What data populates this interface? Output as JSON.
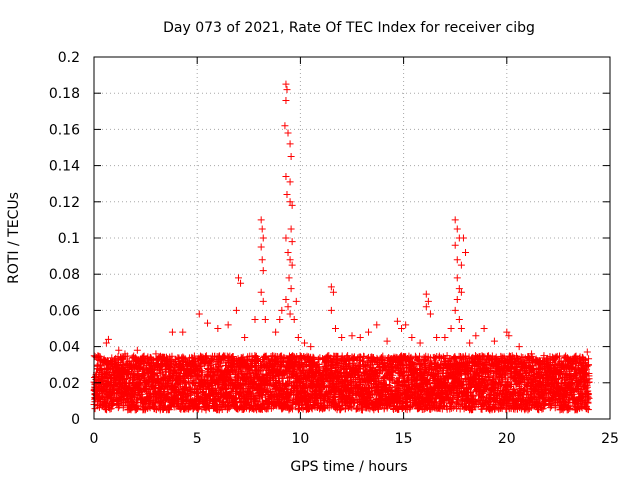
{
  "chart_data": {
    "type": "scatter",
    "title": "Day 073 of 2021, Rate Of TEC Index for receiver cibg",
    "xlabel": "GPS time / hours",
    "ylabel": "ROTI / TECUs",
    "xlim": [
      0,
      25
    ],
    "ylim": [
      0,
      0.2
    ],
    "xticks": [
      0,
      5,
      10,
      15,
      20,
      25
    ],
    "xtick_labels": [
      "0",
      "5",
      "10",
      "15",
      "20",
      "25"
    ],
    "yticks": [
      0,
      0.02,
      0.04,
      0.06,
      0.08,
      0.1,
      0.12,
      0.14,
      0.16,
      0.18,
      0.2
    ],
    "ytick_labels": [
      "0",
      "0.02",
      "0.04",
      "0.06",
      "0.08",
      "0.1",
      "0.12",
      "0.14",
      "0.16",
      "0.18",
      "0.2"
    ],
    "grid": true,
    "marker": "plus",
    "color": "#ff0000",
    "series": [
      {
        "data_range_x": [
          0,
          24
        ],
        "baseline_y_range": [
          0.005,
          0.035
        ],
        "points": [
          [
            0.3,
            0.03
          ],
          [
            0.6,
            0.042
          ],
          [
            0.7,
            0.044
          ],
          [
            1.2,
            0.038
          ],
          [
            1.5,
            0.036
          ],
          [
            2.1,
            0.038
          ],
          [
            3.0,
            0.036
          ],
          [
            3.8,
            0.048
          ],
          [
            4.3,
            0.048
          ],
          [
            5.1,
            0.058
          ],
          [
            5.5,
            0.053
          ],
          [
            6.0,
            0.05
          ],
          [
            6.5,
            0.052
          ],
          [
            6.9,
            0.06
          ],
          [
            7.0,
            0.078
          ],
          [
            7.1,
            0.075
          ],
          [
            7.3,
            0.045
          ],
          [
            7.8,
            0.055
          ],
          [
            8.1,
            0.11
          ],
          [
            8.15,
            0.105
          ],
          [
            8.2,
            0.1
          ],
          [
            8.1,
            0.095
          ],
          [
            8.15,
            0.088
          ],
          [
            8.2,
            0.082
          ],
          [
            8.1,
            0.07
          ],
          [
            8.2,
            0.065
          ],
          [
            8.3,
            0.055
          ],
          [
            8.8,
            0.048
          ],
          [
            9.0,
            0.055
          ],
          [
            9.1,
            0.06
          ],
          [
            9.3,
            0.185
          ],
          [
            9.35,
            0.182
          ],
          [
            9.3,
            0.176
          ],
          [
            9.25,
            0.162
          ],
          [
            9.4,
            0.158
          ],
          [
            9.5,
            0.152
          ],
          [
            9.55,
            0.145
          ],
          [
            9.3,
            0.134
          ],
          [
            9.5,
            0.131
          ],
          [
            9.35,
            0.124
          ],
          [
            9.5,
            0.12
          ],
          [
            9.6,
            0.118
          ],
          [
            9.3,
            0.1
          ],
          [
            9.55,
            0.105
          ],
          [
            9.6,
            0.098
          ],
          [
            9.4,
            0.092
          ],
          [
            9.5,
            0.088
          ],
          [
            9.6,
            0.085
          ],
          [
            9.45,
            0.078
          ],
          [
            9.55,
            0.072
          ],
          [
            9.3,
            0.066
          ],
          [
            9.4,
            0.062
          ],
          [
            9.5,
            0.058
          ],
          [
            9.7,
            0.055
          ],
          [
            9.8,
            0.065
          ],
          [
            9.9,
            0.045
          ],
          [
            10.2,
            0.042
          ],
          [
            10.5,
            0.04
          ],
          [
            11.5,
            0.073
          ],
          [
            11.6,
            0.07
          ],
          [
            11.5,
            0.06
          ],
          [
            11.7,
            0.05
          ],
          [
            12.0,
            0.045
          ],
          [
            12.5,
            0.046
          ],
          [
            12.9,
            0.045
          ],
          [
            13.3,
            0.048
          ],
          [
            13.7,
            0.052
          ],
          [
            14.2,
            0.043
          ],
          [
            14.7,
            0.054
          ],
          [
            14.9,
            0.05
          ],
          [
            15.1,
            0.052
          ],
          [
            15.4,
            0.045
          ],
          [
            15.8,
            0.042
          ],
          [
            16.1,
            0.069
          ],
          [
            16.2,
            0.065
          ],
          [
            16.1,
            0.062
          ],
          [
            16.3,
            0.058
          ],
          [
            16.6,
            0.045
          ],
          [
            17.0,
            0.045
          ],
          [
            17.3,
            0.05
          ],
          [
            17.5,
            0.11
          ],
          [
            17.6,
            0.105
          ],
          [
            17.7,
            0.1
          ],
          [
            17.9,
            0.1
          ],
          [
            18.0,
            0.092
          ],
          [
            17.5,
            0.096
          ],
          [
            17.6,
            0.088
          ],
          [
            17.8,
            0.085
          ],
          [
            17.6,
            0.078
          ],
          [
            17.7,
            0.072
          ],
          [
            17.8,
            0.07
          ],
          [
            17.6,
            0.066
          ],
          [
            17.5,
            0.06
          ],
          [
            17.7,
            0.055
          ],
          [
            17.8,
            0.05
          ],
          [
            18.2,
            0.042
          ],
          [
            18.5,
            0.046
          ],
          [
            18.9,
            0.05
          ],
          [
            19.4,
            0.043
          ],
          [
            20.0,
            0.048
          ],
          [
            20.1,
            0.046
          ],
          [
            20.6,
            0.04
          ],
          [
            21.2,
            0.036
          ],
          [
            21.8,
            0.035
          ],
          [
            22.4,
            0.034
          ],
          [
            23.1,
            0.033
          ],
          [
            23.9,
            0.037
          ]
        ]
      }
    ]
  }
}
